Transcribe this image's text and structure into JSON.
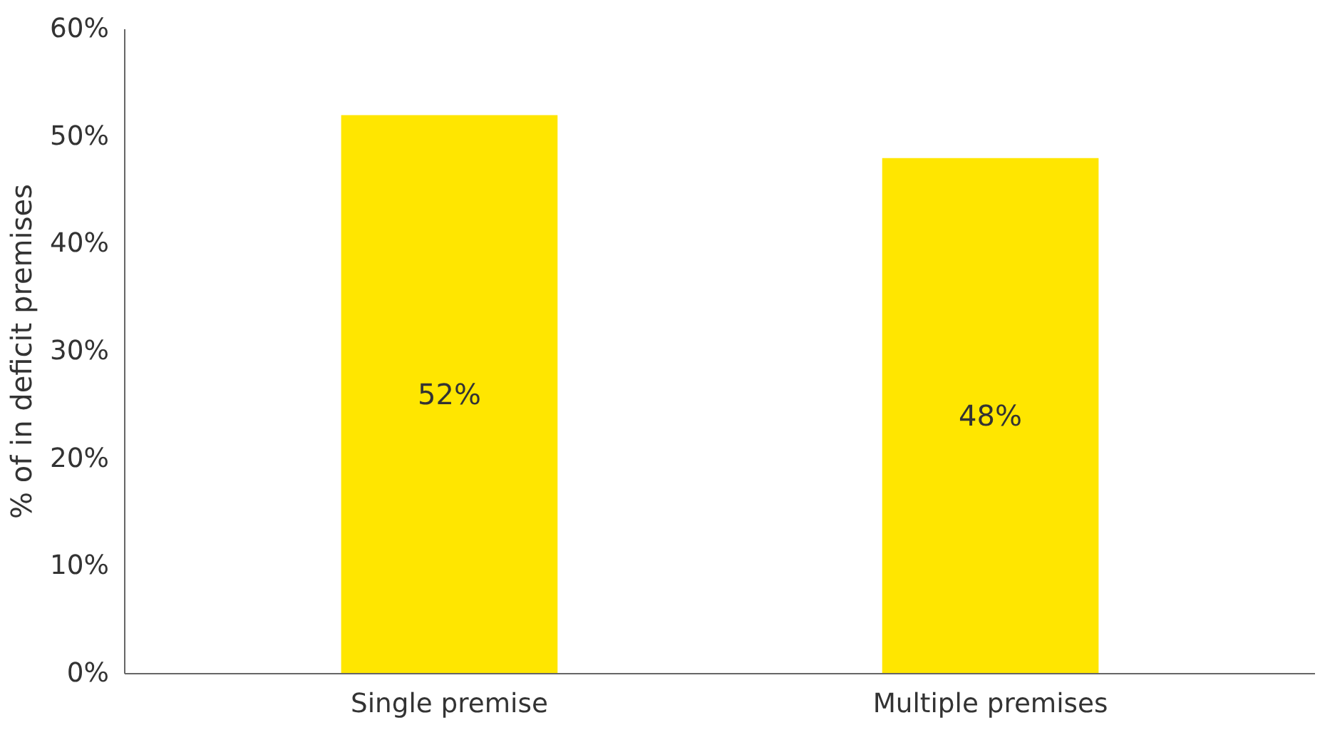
{
  "chart_data": {
    "type": "bar",
    "ylabel": "% of in deficit premises",
    "categories": [
      "Single premise",
      "Multiple premises"
    ],
    "values": [
      52,
      48
    ],
    "value_labels": [
      "52%",
      "48%"
    ],
    "color": "#ffe600",
    "ylim": [
      0,
      60
    ],
    "yticks": [
      {
        "value": 0,
        "label": "0%"
      },
      {
        "value": 10,
        "label": "10%"
      },
      {
        "value": 20,
        "label": "20%"
      },
      {
        "value": 30,
        "label": "30%"
      },
      {
        "value": 40,
        "label": "40%"
      },
      {
        "value": 50,
        "label": "50%"
      },
      {
        "value": 60,
        "label": "60%"
      }
    ],
    "grid": false
  }
}
